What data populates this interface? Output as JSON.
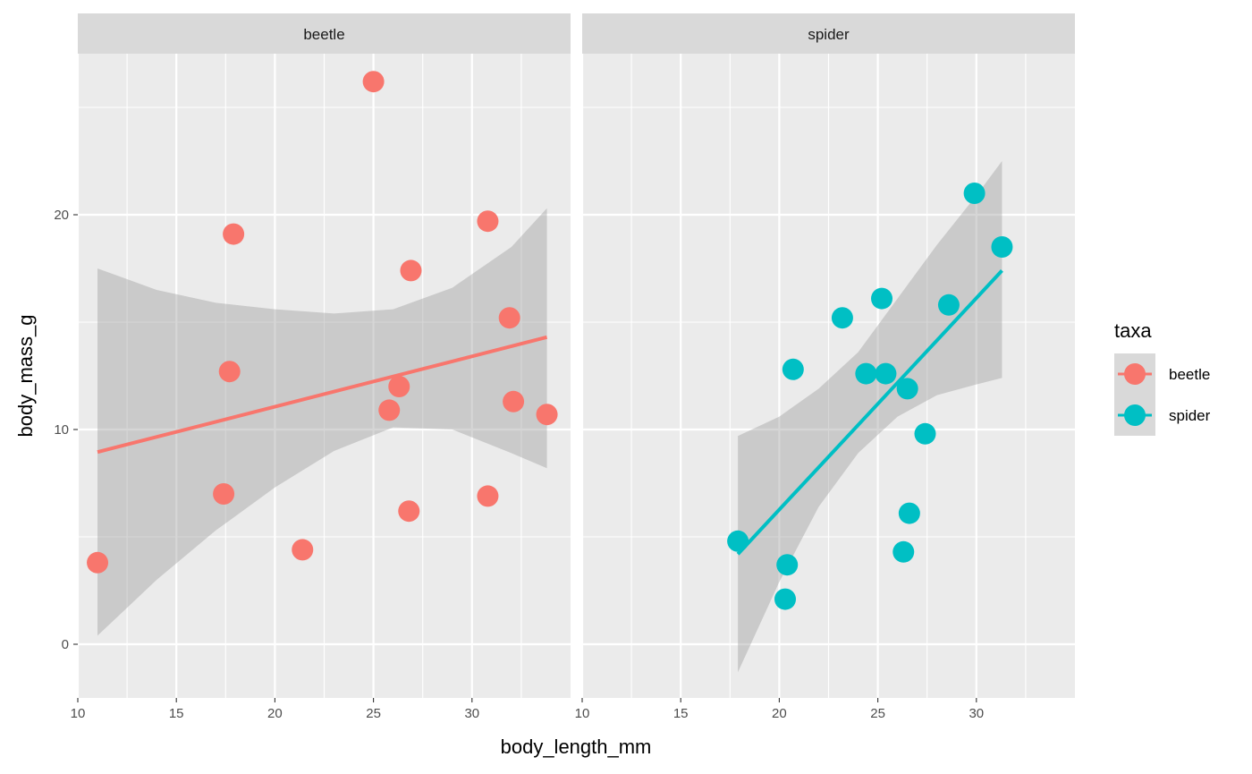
{
  "chart_data": {
    "type": "scatter",
    "facet_var": "taxa",
    "panels": [
      "beetle",
      "spider"
    ],
    "xlabel": "body_length_mm",
    "ylabel": "body_mass_g",
    "xlim": [
      10,
      35
    ],
    "ylim": [
      -2.5,
      27.5
    ],
    "x_ticks": [
      10,
      15,
      20,
      25,
      30
    ],
    "y_ticks": [
      0,
      10,
      20
    ],
    "grid": true,
    "legend": {
      "title": "taxa",
      "position": "right",
      "entries": [
        {
          "label": "beetle",
          "color": "#F8766D"
        },
        {
          "label": "spider",
          "color": "#00BFC4"
        }
      ]
    },
    "series": [
      {
        "name": "beetle",
        "color": "#F8766D",
        "points": [
          {
            "x": 11.0,
            "y": 3.8
          },
          {
            "x": 17.4,
            "y": 7.0
          },
          {
            "x": 17.7,
            "y": 12.7
          },
          {
            "x": 17.9,
            "y": 19.1
          },
          {
            "x": 21.4,
            "y": 4.4
          },
          {
            "x": 25.0,
            "y": 26.2
          },
          {
            "x": 25.8,
            "y": 10.9
          },
          {
            "x": 26.3,
            "y": 12.0
          },
          {
            "x": 26.8,
            "y": 6.2
          },
          {
            "x": 26.9,
            "y": 17.4
          },
          {
            "x": 30.8,
            "y": 6.9
          },
          {
            "x": 30.8,
            "y": 19.7
          },
          {
            "x": 31.9,
            "y": 15.2
          },
          {
            "x": 32.1,
            "y": 11.3
          },
          {
            "x": 33.8,
            "y": 10.7
          }
        ],
        "fit": {
          "x": [
            11.0,
            33.8
          ],
          "y": [
            8.95,
            14.3
          ]
        },
        "ci_band": {
          "x": [
            11,
            14,
            17,
            20,
            23,
            26,
            29,
            32,
            33.8
          ],
          "lower": [
            0.4,
            3.0,
            5.3,
            7.3,
            9.0,
            10.1,
            10.0,
            8.9,
            8.2
          ],
          "upper": [
            17.5,
            16.5,
            15.9,
            15.6,
            15.4,
            15.6,
            16.6,
            18.5,
            20.3
          ]
        }
      },
      {
        "name": "spider",
        "color": "#00BFC4",
        "points": [
          {
            "x": 17.9,
            "y": 4.8
          },
          {
            "x": 20.3,
            "y": 2.1
          },
          {
            "x": 20.4,
            "y": 3.7
          },
          {
            "x": 20.7,
            "y": 12.8
          },
          {
            "x": 23.2,
            "y": 15.2
          },
          {
            "x": 24.4,
            "y": 12.6
          },
          {
            "x": 25.2,
            "y": 16.1
          },
          {
            "x": 25.4,
            "y": 12.6
          },
          {
            "x": 26.3,
            "y": 4.3
          },
          {
            "x": 26.5,
            "y": 11.9
          },
          {
            "x": 26.6,
            "y": 6.1
          },
          {
            "x": 27.4,
            "y": 9.8
          },
          {
            "x": 28.6,
            "y": 15.8
          },
          {
            "x": 29.9,
            "y": 21.0
          },
          {
            "x": 31.3,
            "y": 18.5
          }
        ],
        "fit": {
          "x": [
            17.9,
            31.3
          ],
          "y": [
            4.2,
            17.4
          ]
        },
        "ci_band": {
          "x": [
            17.9,
            20,
            22,
            24,
            26,
            28,
            30,
            31.3
          ],
          "lower": [
            -1.3,
            2.9,
            6.4,
            8.9,
            10.6,
            11.6,
            12.1,
            12.4
          ],
          "upper": [
            9.7,
            10.6,
            11.9,
            13.6,
            16.1,
            18.6,
            20.9,
            22.5
          ]
        }
      }
    ]
  }
}
